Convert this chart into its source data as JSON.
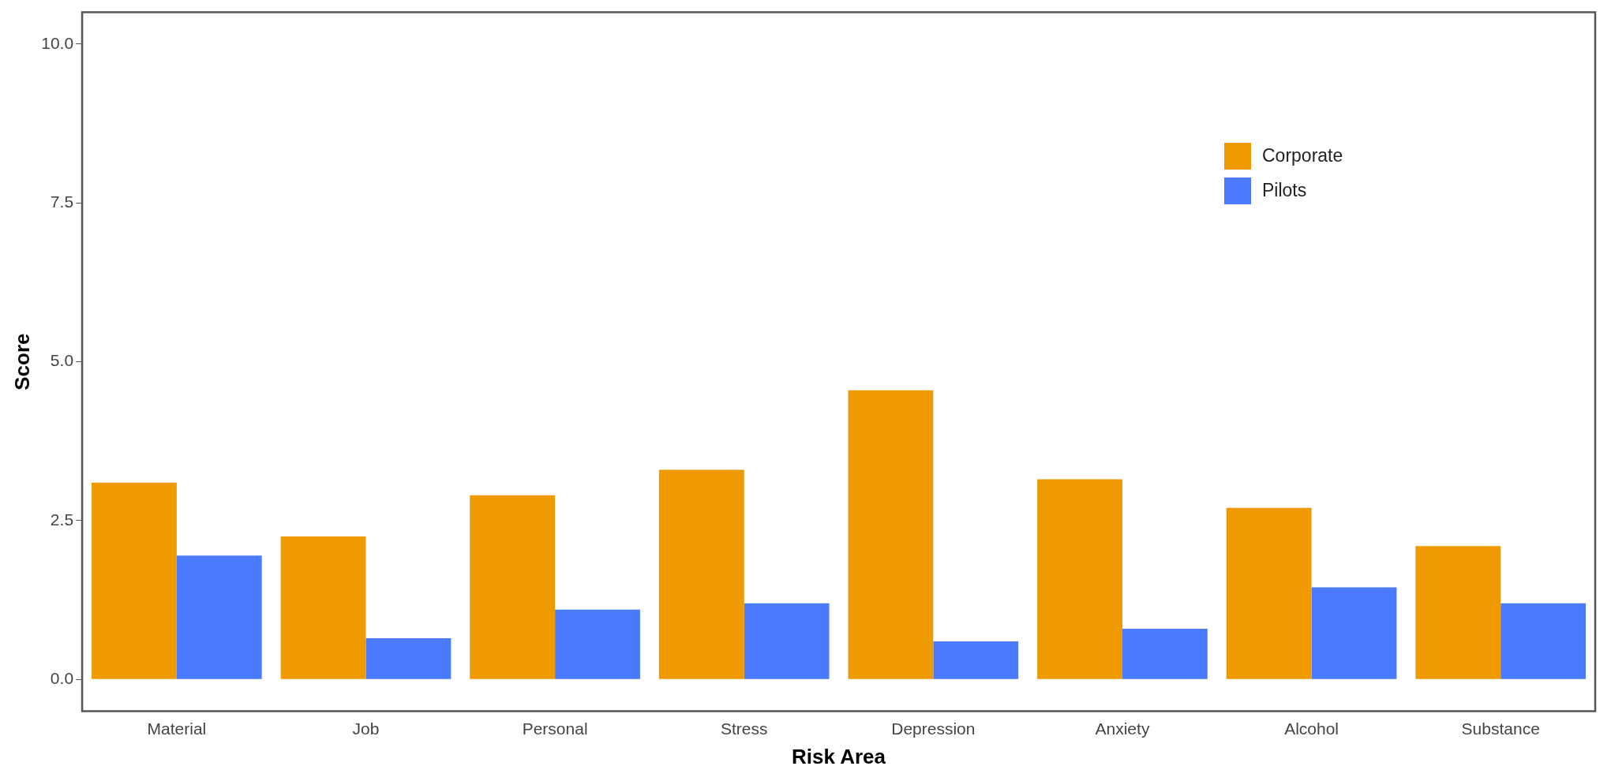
{
  "chart_data": {
    "type": "bar",
    "xlabel": "Risk Area",
    "ylabel": "Score",
    "categories": [
      "Material",
      "Job",
      "Personal",
      "Stress",
      "Depression",
      "Anxiety",
      "Alcohol",
      "Substance"
    ],
    "series": [
      {
        "name": "Corporate",
        "color": "#ee9a00",
        "values": [
          3.1,
          2.25,
          2.9,
          3.3,
          4.55,
          3.15,
          2.7,
          2.1
        ]
      },
      {
        "name": "Pilots",
        "color": "#4a7aff",
        "values": [
          1.95,
          0.65,
          1.1,
          1.2,
          0.6,
          0.8,
          1.45,
          1.2
        ]
      }
    ],
    "ylim": [
      -0.5,
      10.5
    ],
    "yticks": [
      {
        "value": 0,
        "label": "0.0"
      },
      {
        "value": 2.5,
        "label": "2.5"
      },
      {
        "value": 5,
        "label": "5.0"
      },
      {
        "value": 7.5,
        "label": "7.5"
      },
      {
        "value": 10,
        "label": "10.0"
      }
    ],
    "grid": false,
    "legend": "top right"
  }
}
